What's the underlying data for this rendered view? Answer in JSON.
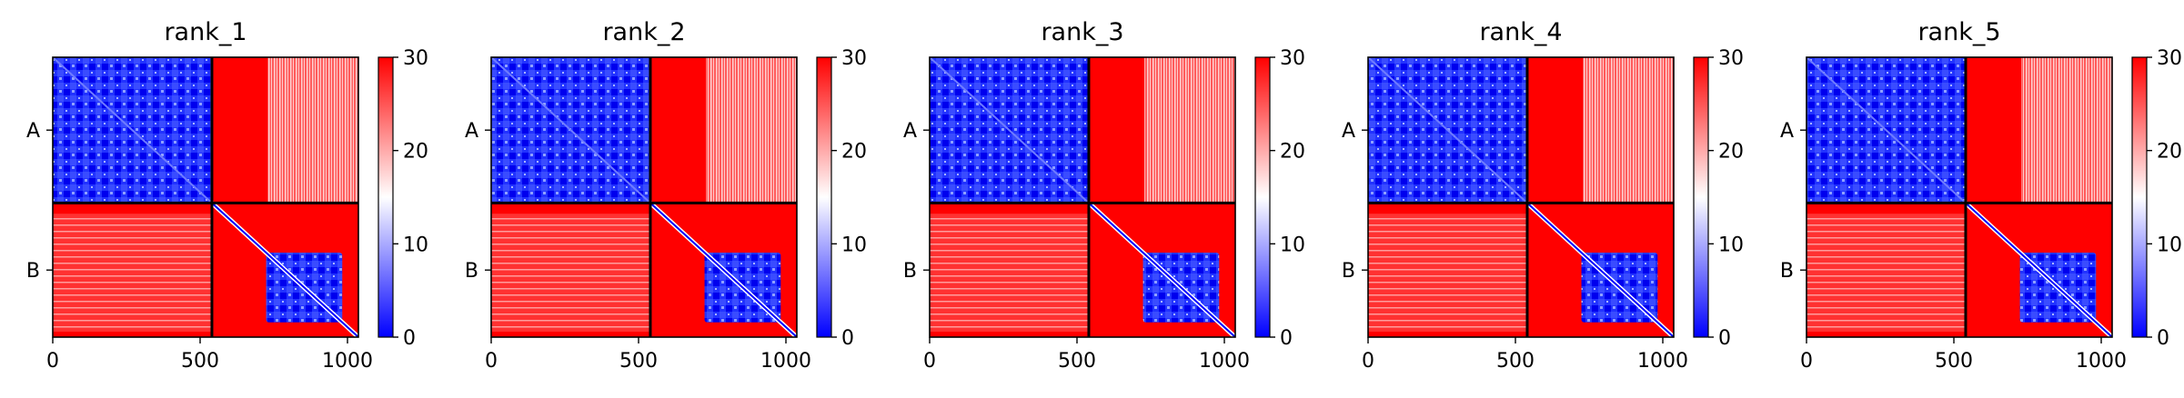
{
  "figure": {
    "background": "#ffffff"
  },
  "chart_data": [
    {
      "type": "heatmap",
      "title": "rank_1",
      "x": {
        "ticks": [
          0,
          500,
          1000
        ],
        "range": [
          0,
          1037
        ]
      },
      "y": {
        "tick_labels": [
          "A",
          "B"
        ]
      },
      "chains": [
        {
          "name": "A",
          "start": 0,
          "end": 540
        },
        {
          "name": "B",
          "start": 540,
          "end": 1037
        }
      ],
      "colorbar": {
        "min": 0,
        "max": 30,
        "ticks": [
          0,
          10,
          20,
          30
        ],
        "colors": [
          "#0000ff",
          "#ffffff",
          "#ff0000"
        ]
      },
      "regions": {
        "A_intra": "low",
        "B_domain_intra": "low",
        "A_to_B_pale_band": "intermediate",
        "B_to_A_pale_block": "intermediate",
        "other_inter_chain": "high"
      }
    },
    {
      "type": "heatmap",
      "title": "rank_2",
      "x": {
        "ticks": [
          0,
          500,
          1000
        ],
        "range": [
          0,
          1037
        ]
      },
      "y": {
        "tick_labels": [
          "A",
          "B"
        ]
      },
      "chains": [
        {
          "name": "A",
          "start": 0,
          "end": 540
        },
        {
          "name": "B",
          "start": 540,
          "end": 1037
        }
      ],
      "colorbar": {
        "min": 0,
        "max": 30,
        "ticks": [
          0,
          10,
          20,
          30
        ],
        "colors": [
          "#0000ff",
          "#ffffff",
          "#ff0000"
        ]
      },
      "regions": {
        "A_intra": "low",
        "B_domain_intra": "low",
        "A_to_B_pale_band": "intermediate",
        "B_to_A_pale_block": "intermediate",
        "other_inter_chain": "high"
      }
    },
    {
      "type": "heatmap",
      "title": "rank_3",
      "x": {
        "ticks": [
          0,
          500,
          1000
        ],
        "range": [
          0,
          1037
        ]
      },
      "y": {
        "tick_labels": [
          "A",
          "B"
        ]
      },
      "chains": [
        {
          "name": "A",
          "start": 0,
          "end": 540
        },
        {
          "name": "B",
          "start": 540,
          "end": 1037
        }
      ],
      "colorbar": {
        "min": 0,
        "max": 30,
        "ticks": [
          0,
          10,
          20,
          30
        ],
        "colors": [
          "#0000ff",
          "#ffffff",
          "#ff0000"
        ]
      },
      "regions": {
        "A_intra": "low",
        "B_domain_intra": "low",
        "A_to_B_pale_band": "intermediate",
        "B_to_A_pale_block": "intermediate",
        "other_inter_chain": "high"
      }
    },
    {
      "type": "heatmap",
      "title": "rank_4",
      "x": {
        "ticks": [
          0,
          500,
          1000
        ],
        "range": [
          0,
          1037
        ]
      },
      "y": {
        "tick_labels": [
          "A",
          "B"
        ]
      },
      "chains": [
        {
          "name": "A",
          "start": 0,
          "end": 540
        },
        {
          "name": "B",
          "start": 540,
          "end": 1037
        }
      ],
      "colorbar": {
        "min": 0,
        "max": 30,
        "ticks": [
          0,
          10,
          20,
          30
        ],
        "colors": [
          "#0000ff",
          "#ffffff",
          "#ff0000"
        ]
      },
      "regions": {
        "A_intra": "low",
        "B_domain_intra": "low",
        "A_to_B_pale_band": "intermediate",
        "B_to_A_pale_block": "intermediate",
        "other_inter_chain": "high"
      }
    },
    {
      "type": "heatmap",
      "title": "rank_5",
      "x": {
        "ticks": [
          0,
          500,
          1000
        ],
        "range": [
          0,
          1037
        ]
      },
      "y": {
        "tick_labels": [
          "A",
          "B"
        ]
      },
      "chains": [
        {
          "name": "A",
          "start": 0,
          "end": 540
        },
        {
          "name": "B",
          "start": 540,
          "end": 1037
        }
      ],
      "colorbar": {
        "min": 0,
        "max": 30,
        "ticks": [
          0,
          10,
          20,
          30
        ],
        "colors": [
          "#0000ff",
          "#ffffff",
          "#ff0000"
        ]
      },
      "regions": {
        "A_intra": "low",
        "B_domain_intra": "low",
        "A_to_B_pale_band": "intermediate",
        "B_to_A_pale_block": "intermediate",
        "other_inter_chain": "high"
      }
    }
  ]
}
